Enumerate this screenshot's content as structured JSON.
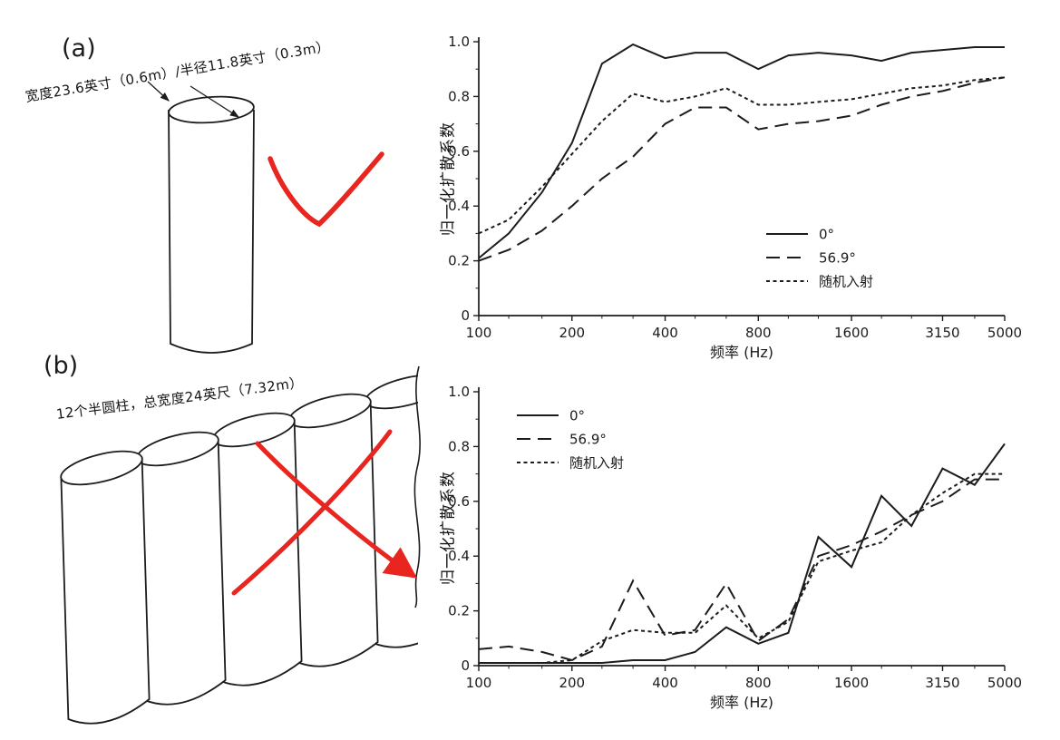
{
  "figure": {
    "panel_a_label": "(a)",
    "panel_b_label": "(b)",
    "panel_a_caption": "宽度23.6英寸（0.6m）/半径11.8英寸（0.3m）",
    "panel_b_caption": "12个半圆柱，总宽度24英尺（7.32m）",
    "panel_a_mark": "checkmark",
    "panel_b_mark": "x-cross",
    "annotation_color": "#e8251f",
    "ink_color": "#1c1c1c"
  },
  "chart_data": [
    {
      "type": "line",
      "x": [
        100,
        125,
        160,
        200,
        250,
        315,
        400,
        500,
        630,
        800,
        1000,
        1250,
        1600,
        2000,
        2500,
        3150,
        4000,
        5000
      ],
      "series": [
        {
          "name": "0°",
          "style": "solid",
          "values": [
            0.21,
            0.3,
            0.45,
            0.63,
            0.92,
            0.99,
            0.94,
            0.96,
            0.96,
            0.9,
            0.95,
            0.96,
            0.95,
            0.93,
            0.96,
            0.97,
            0.98,
            0.98
          ]
        },
        {
          "name": "56.9°",
          "style": "long-dash",
          "values": [
            0.2,
            0.24,
            0.31,
            0.4,
            0.5,
            0.58,
            0.7,
            0.76,
            0.76,
            0.68,
            0.7,
            0.71,
            0.73,
            0.77,
            0.8,
            0.82,
            0.85,
            0.87
          ]
        },
        {
          "name": "随机入射",
          "style": "short-dash",
          "values": [
            0.3,
            0.35,
            0.47,
            0.59,
            0.71,
            0.81,
            0.78,
            0.8,
            0.83,
            0.77,
            0.77,
            0.78,
            0.79,
            0.81,
            0.83,
            0.84,
            0.86,
            0.87
          ]
        }
      ],
      "xlabel": "频率 (Hz)",
      "ylabel": "归一化扩散系数",
      "xscale": "log",
      "xlim": [
        100,
        5000
      ],
      "ylim": [
        0,
        1.0
      ],
      "xticks": [
        100,
        200,
        400,
        800,
        1600,
        3150,
        5000
      ],
      "xticks_minor": [
        125,
        160,
        250,
        315,
        500,
        630,
        1000,
        1250,
        2000,
        2500,
        4000
      ],
      "yticks": [
        0,
        0.2,
        0.4,
        0.6,
        0.8,
        1.0
      ],
      "grid": false,
      "legend_position": "bottom-right",
      "legend_offset": [
        317,
        212
      ]
    },
    {
      "type": "line",
      "x": [
        100,
        125,
        160,
        200,
        250,
        315,
        400,
        500,
        630,
        800,
        1000,
        1250,
        1600,
        2000,
        2500,
        3150,
        4000,
        5000
      ],
      "series": [
        {
          "name": "0°",
          "style": "solid",
          "values": [
            0.01,
            0.01,
            0.01,
            0.01,
            0.01,
            0.02,
            0.02,
            0.05,
            0.14,
            0.08,
            0.12,
            0.47,
            0.36,
            0.62,
            0.51,
            0.72,
            0.66,
            0.81
          ]
        },
        {
          "name": "56.9°",
          "style": "long-dash",
          "values": [
            0.06,
            0.07,
            0.05,
            0.02,
            0.07,
            0.31,
            0.11,
            0.13,
            0.3,
            0.09,
            0.17,
            0.4,
            0.44,
            0.49,
            0.55,
            0.6,
            0.68,
            0.68
          ]
        },
        {
          "name": "随机入射",
          "style": "short-dash",
          "values": [
            0.01,
            0.01,
            0.01,
            0.02,
            0.09,
            0.13,
            0.12,
            0.12,
            0.22,
            0.1,
            0.16,
            0.38,
            0.42,
            0.45,
            0.55,
            0.63,
            0.7,
            0.7
          ]
        }
      ],
      "xlabel": "频率 (Hz)",
      "ylabel": "归一化扩散系数",
      "xscale": "log",
      "xlim": [
        100,
        5000
      ],
      "ylim": [
        0,
        1.0
      ],
      "xticks": [
        100,
        200,
        400,
        800,
        1600,
        3150,
        5000
      ],
      "xticks_minor": [
        125,
        160,
        250,
        315,
        500,
        630,
        1000,
        1250,
        2000,
        2500,
        4000
      ],
      "yticks": [
        0,
        0.2,
        0.4,
        0.6,
        0.8,
        1.0
      ],
      "grid": false,
      "legend_position": "top-left",
      "legend_offset": [
        42,
        26
      ]
    }
  ]
}
